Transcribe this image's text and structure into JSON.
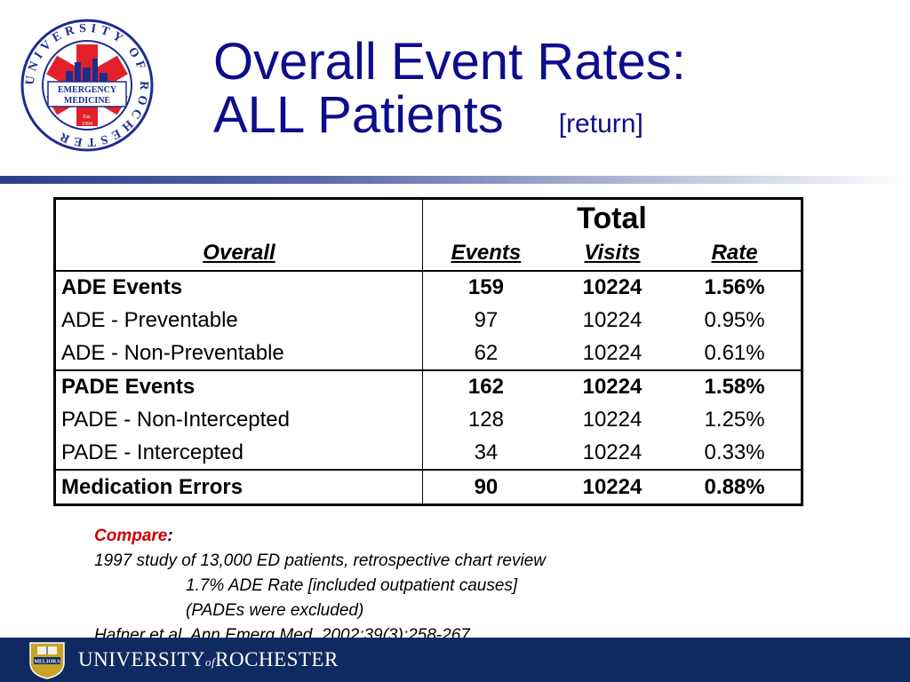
{
  "title": {
    "line1": "Overall Event Rates:",
    "line2": "ALL Patients",
    "return_link": "[return]"
  },
  "logo": {
    "ring_text": "UNIVERSITY OF ROCHESTER",
    "banner_line1": "EMERGENCY",
    "banner_line2": "MEDICINE",
    "est_line1": "Est.",
    "est_line2": "1994"
  },
  "table": {
    "group_header": "Total",
    "columns": [
      "Overall",
      "Events",
      "Visits",
      "Rate"
    ],
    "rows": [
      {
        "label": "ADE Events",
        "events": "159",
        "visits": "10224",
        "rate": "1.56%",
        "bold": true
      },
      {
        "label": "ADE - Preventable",
        "events": "97",
        "visits": "10224",
        "rate": "0.95%",
        "bold": false
      },
      {
        "label": "ADE - Non-Preventable",
        "events": "62",
        "visits": "10224",
        "rate": "0.61%",
        "bold": false
      },
      {
        "label": "PADE Events",
        "events": "162",
        "visits": "10224",
        "rate": "1.58%",
        "bold": true
      },
      {
        "label": "PADE - Non-Intercepted",
        "events": "128",
        "visits": "10224",
        "rate": "1.25%",
        "bold": false
      },
      {
        "label": "PADE - Intercepted",
        "events": "34",
        "visits": "10224",
        "rate": "0.33%",
        "bold": false
      },
      {
        "label": "Medication Errors",
        "events": "90",
        "visits": "10224",
        "rate": "0.88%",
        "bold": true
      }
    ]
  },
  "notes": {
    "compare_label": "Compare",
    "compare_colon": ":",
    "line1": "1997 study of 13,000 ED patients, retrospective chart review",
    "line2": "1.7% ADE Rate [included outpatient causes]",
    "line3": "(PADEs were excluded)",
    "line4": "Hafner et al, Ann Emerg Med. 2002;39(3):258-267"
  },
  "footer": {
    "name_part1": "UNIVERSITY",
    "name_of": "of",
    "name_part2": "ROCHESTER",
    "seal_text": "MELIORA"
  },
  "colors": {
    "title": "#0d0d8c",
    "compare": "#cc0000",
    "footer_bg": "#0f2a60",
    "logo_red": "#e2202a",
    "logo_blue": "#1d2d8f"
  }
}
